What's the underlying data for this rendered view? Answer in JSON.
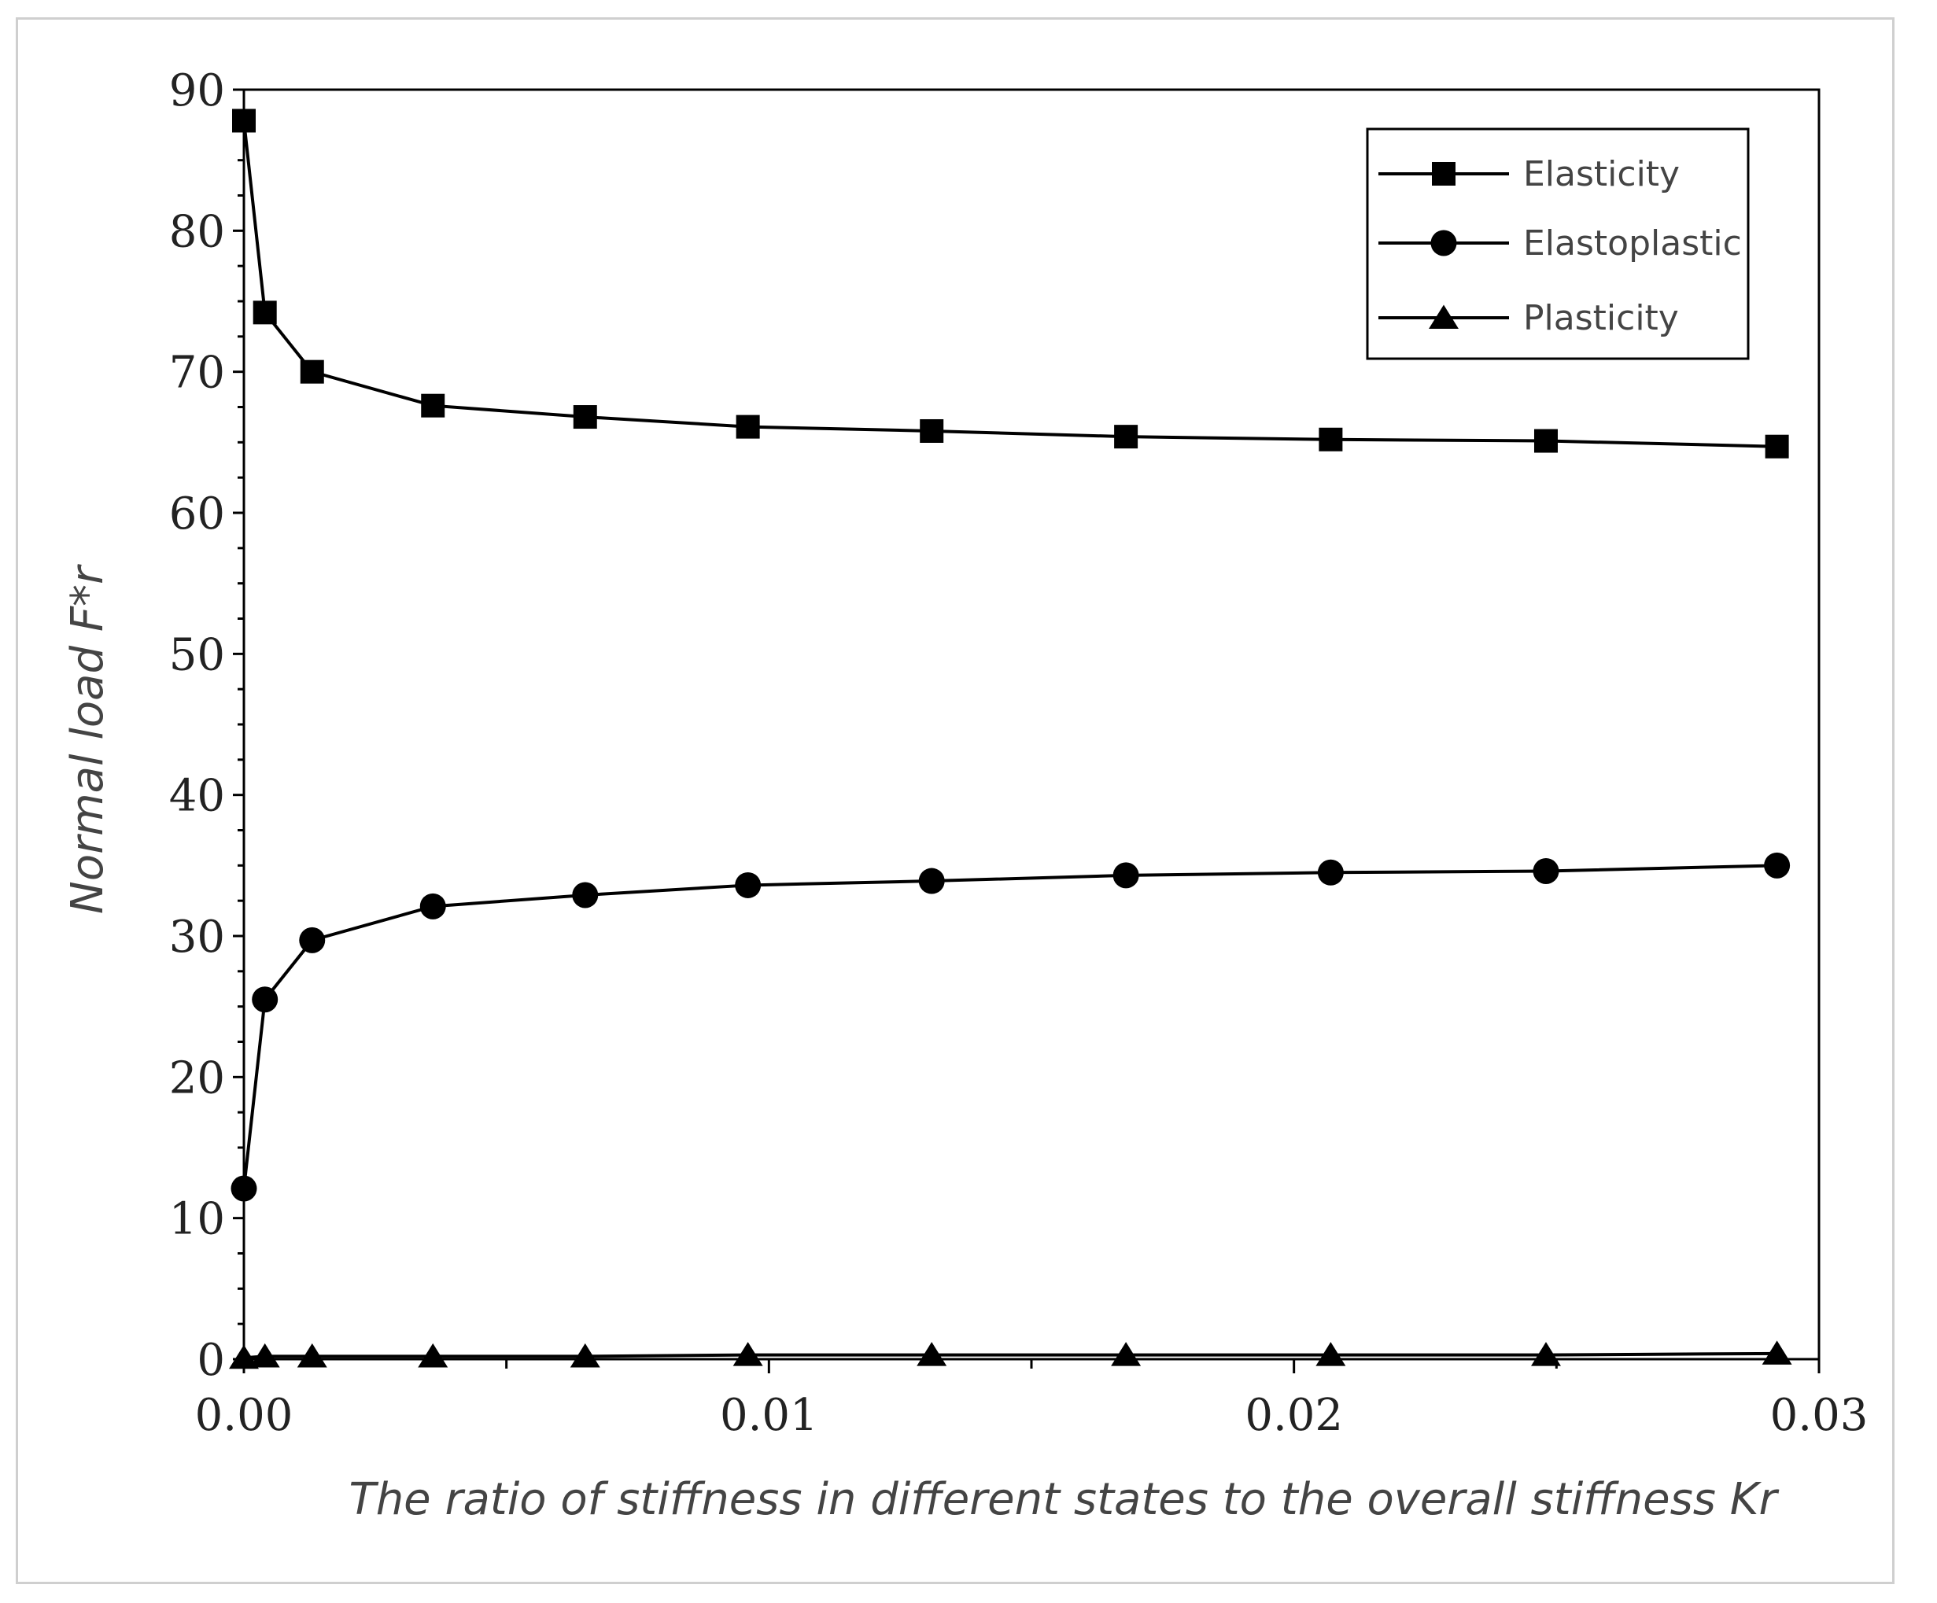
{
  "chart_data": {
    "type": "line",
    "title": "",
    "xlabel": "The ratio of stiffness in different states to the overall stiffness Kr",
    "ylabel": "Normal load F*r",
    "xlim": [
      0,
      0.03
    ],
    "ylim": [
      0,
      90
    ],
    "x_ticks": [
      "0.00",
      "0.01",
      "0.02",
      "0.03"
    ],
    "y_ticks": [
      "0",
      "10",
      "20",
      "30",
      "40",
      "50",
      "60",
      "70",
      "80",
      "90"
    ],
    "grid": false,
    "legend_position": "top-right",
    "x": [
      0.0,
      0.0004,
      0.0013,
      0.0036,
      0.0065,
      0.0096,
      0.0131,
      0.0168,
      0.0207,
      0.0248,
      0.0292
    ],
    "series": [
      {
        "name": "Elasticity",
        "marker": "square",
        "values": [
          87.8,
          74.2,
          70.0,
          67.6,
          66.8,
          66.1,
          65.8,
          65.4,
          65.2,
          65.1,
          64.7
        ]
      },
      {
        "name": "Elastoplastic",
        "marker": "circle",
        "values": [
          12.1,
          25.5,
          29.7,
          32.1,
          32.9,
          33.6,
          33.9,
          34.3,
          34.5,
          34.6,
          35.0
        ]
      },
      {
        "name": "Plasticity",
        "marker": "triangle",
        "values": [
          0.1,
          0.2,
          0.2,
          0.2,
          0.2,
          0.3,
          0.3,
          0.3,
          0.3,
          0.3,
          0.4
        ]
      }
    ],
    "line_color": "#000000"
  }
}
